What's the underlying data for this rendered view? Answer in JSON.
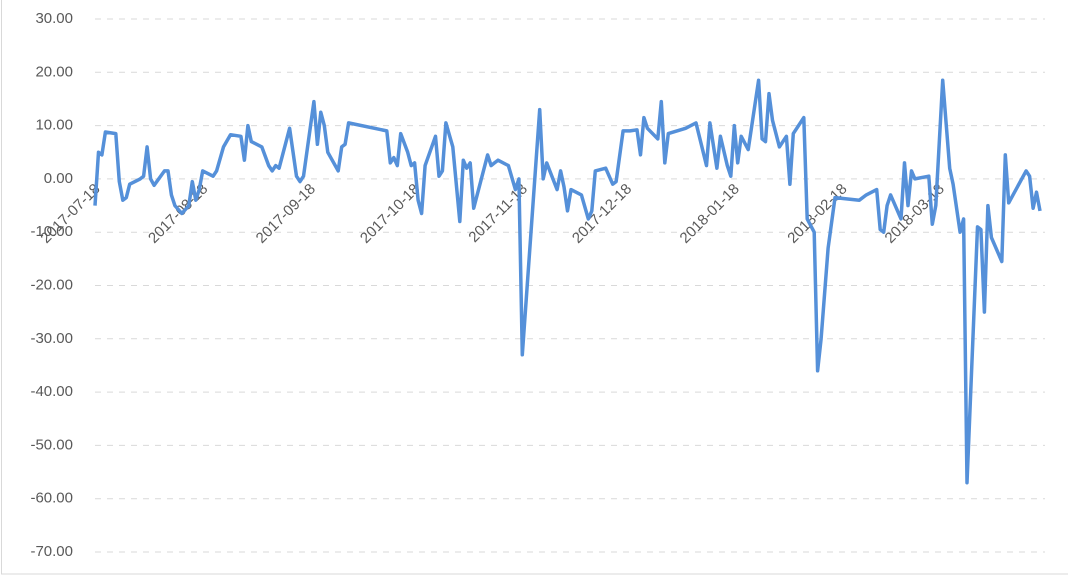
{
  "chart_data": {
    "type": "line",
    "color": "#5590d9",
    "grid": true,
    "ylim": [
      -70,
      30
    ],
    "yticks": [
      {
        "value": 30,
        "label": "30.00"
      },
      {
        "value": 20,
        "label": "20.00"
      },
      {
        "value": 10,
        "label": "10.00"
      },
      {
        "value": 0,
        "label": "0.00"
      },
      {
        "value": -10,
        "label": "-10.00"
      },
      {
        "value": -20,
        "label": "-20.00"
      },
      {
        "value": -30,
        "label": "-30.00"
      },
      {
        "value": -40,
        "label": "-40.00"
      },
      {
        "value": -50,
        "label": "-50.00"
      },
      {
        "value": -60,
        "label": "-60.00"
      },
      {
        "value": -70,
        "label": "-70.00"
      }
    ],
    "xlim": [
      "2017-07-18",
      "2018-04-16"
    ],
    "xticks": [
      "2017-07-18",
      "2017-08-18",
      "2017-09-18",
      "2017-10-18",
      "2017-11-18",
      "2017-12-18",
      "2018-01-18",
      "2018-02-18",
      "2018-03-18"
    ],
    "x": [
      "2017-07-18",
      "2017-07-19",
      "2017-07-20",
      "2017-07-21",
      "2017-07-24",
      "2017-07-25",
      "2017-07-26",
      "2017-07-27",
      "2017-07-28",
      "2017-07-31",
      "2017-08-01",
      "2017-08-02",
      "2017-08-03",
      "2017-08-04",
      "2017-08-07",
      "2017-08-08",
      "2017-08-09",
      "2017-08-10",
      "2017-08-12",
      "2017-08-14",
      "2017-08-15",
      "2017-08-16",
      "2017-08-17",
      "2017-08-18",
      "2017-08-21",
      "2017-08-22",
      "2017-08-24",
      "2017-08-26",
      "2017-08-29",
      "2017-08-30",
      "2017-08-31",
      "2017-09-01",
      "2017-09-04",
      "2017-09-06",
      "2017-09-07",
      "2017-09-08",
      "2017-09-09",
      "2017-09-12",
      "2017-09-14",
      "2017-09-15",
      "2017-09-16",
      "2017-09-19",
      "2017-09-20",
      "2017-09-21",
      "2017-09-22",
      "2017-09-23",
      "2017-09-26",
      "2017-09-27",
      "2017-09-28",
      "2017-09-29",
      "2017-10-10",
      "2017-10-11",
      "2017-10-12",
      "2017-10-13",
      "2017-10-14",
      "2017-10-16",
      "2017-10-17",
      "2017-10-18",
      "2017-10-19",
      "2017-10-20",
      "2017-10-21",
      "2017-10-24",
      "2017-10-25",
      "2017-10-26",
      "2017-10-27",
      "2017-10-29",
      "2017-10-31",
      "2017-11-01",
      "2017-11-02",
      "2017-11-03",
      "2017-11-04",
      "2017-11-08",
      "2017-11-09",
      "2017-11-10",
      "2017-11-11",
      "2017-11-14",
      "2017-11-16",
      "2017-11-17",
      "2017-11-18",
      "2017-11-23",
      "2017-11-24",
      "2017-11-25",
      "2017-11-28",
      "2017-11-29",
      "2017-11-30",
      "2017-12-01",
      "2017-12-02",
      "2017-12-05",
      "2017-12-07",
      "2017-12-08",
      "2017-12-09",
      "2017-12-12",
      "2017-12-14",
      "2017-12-15",
      "2017-12-17",
      "2017-12-19",
      "2017-12-21",
      "2017-12-22",
      "2017-12-23",
      "2017-12-24",
      "2017-12-27",
      "2017-12-28",
      "2017-12-29",
      "2017-12-30",
      "2018-01-04",
      "2018-01-07",
      "2018-01-10",
      "2018-01-11",
      "2018-01-13",
      "2018-01-14",
      "2018-01-16",
      "2018-01-17",
      "2018-01-18",
      "2018-01-19",
      "2018-01-20",
      "2018-01-22",
      "2018-01-25",
      "2018-01-26",
      "2018-01-27",
      "2018-01-28",
      "2018-01-29",
      "2018-01-31",
      "2018-02-02",
      "2018-02-03",
      "2018-02-04",
      "2018-02-07",
      "2018-02-08",
      "2018-02-10",
      "2018-02-11",
      "2018-02-12",
      "2018-02-14",
      "2018-02-16",
      "2018-02-23",
      "2018-02-25",
      "2018-02-28",
      "2018-03-01",
      "2018-03-02",
      "2018-03-03",
      "2018-03-04",
      "2018-03-07",
      "2018-03-08",
      "2018-03-09",
      "2018-03-10",
      "2018-03-11",
      "2018-03-15",
      "2018-03-16",
      "2018-03-17",
      "2018-03-19",
      "2018-03-21",
      "2018-03-22",
      "2018-03-24",
      "2018-03-25",
      "2018-03-26",
      "2018-03-29",
      "2018-03-30",
      "2018-03-31",
      "2018-04-01",
      "2018-04-02",
      "2018-04-05",
      "2018-04-06",
      "2018-04-07",
      "2018-04-12",
      "2018-04-13",
      "2018-04-14",
      "2018-04-15",
      "2018-04-16"
    ],
    "values": [
      -5,
      5,
      4.5,
      8.8,
      8.5,
      -0.5,
      -4,
      -3.5,
      -1,
      0,
      0.5,
      6,
      0,
      -1.2,
      1.5,
      1.5,
      -3,
      -5,
      -6.5,
      -5,
      -0.5,
      -4,
      -2,
      1.5,
      0.5,
      1.5,
      6,
      8.3,
      8,
      3.5,
      10,
      7,
      6,
      2.5,
      1.5,
      2.5,
      2,
      9.5,
      0.5,
      -0.5,
      0.5,
      14.5,
      6.5,
      12.5,
      10,
      5,
      1.5,
      6,
      6.5,
      10.5,
      9,
      3,
      4,
      2.5,
      8.5,
      5,
      2.5,
      3,
      -4,
      -6.5,
      2.5,
      8,
      0.5,
      1.5,
      10.5,
      6,
      -8,
      3.5,
      2,
      3,
      -5.5,
      4.5,
      2.5,
      3,
      3.5,
      2.5,
      -2,
      0,
      -33,
      13,
      0,
      3,
      -2,
      1.5,
      -1.5,
      -6,
      -2,
      -3,
      -7.5,
      -6,
      1.5,
      2,
      -1,
      -0.5,
      9,
      9,
      9.2,
      4.5,
      11.5,
      9.5,
      7.5,
      14.5,
      3,
      8.5,
      9.5,
      10.5,
      2.5,
      10.5,
      2,
      8,
      2.5,
      0.5,
      10,
      3,
      8,
      5.5,
      18.5,
      7.5,
      7,
      16,
      11,
      6,
      8,
      -1,
      8.5,
      11.5,
      -7.5,
      -10,
      -36,
      -30,
      -13,
      -3.5,
      -4,
      -3,
      -2,
      -9.5,
      -10,
      -5,
      -3,
      -7.5,
      3,
      -5,
      1.5,
      0,
      0.5,
      -8.5,
      -5,
      18.5,
      2,
      -1,
      -10,
      -7.5,
      -57,
      -9,
      -9.5,
      -25,
      -5,
      -11,
      -15.5,
      4.5,
      -4.5,
      1.5,
      0.5,
      -5.5,
      -2.5,
      -6
    ]
  }
}
